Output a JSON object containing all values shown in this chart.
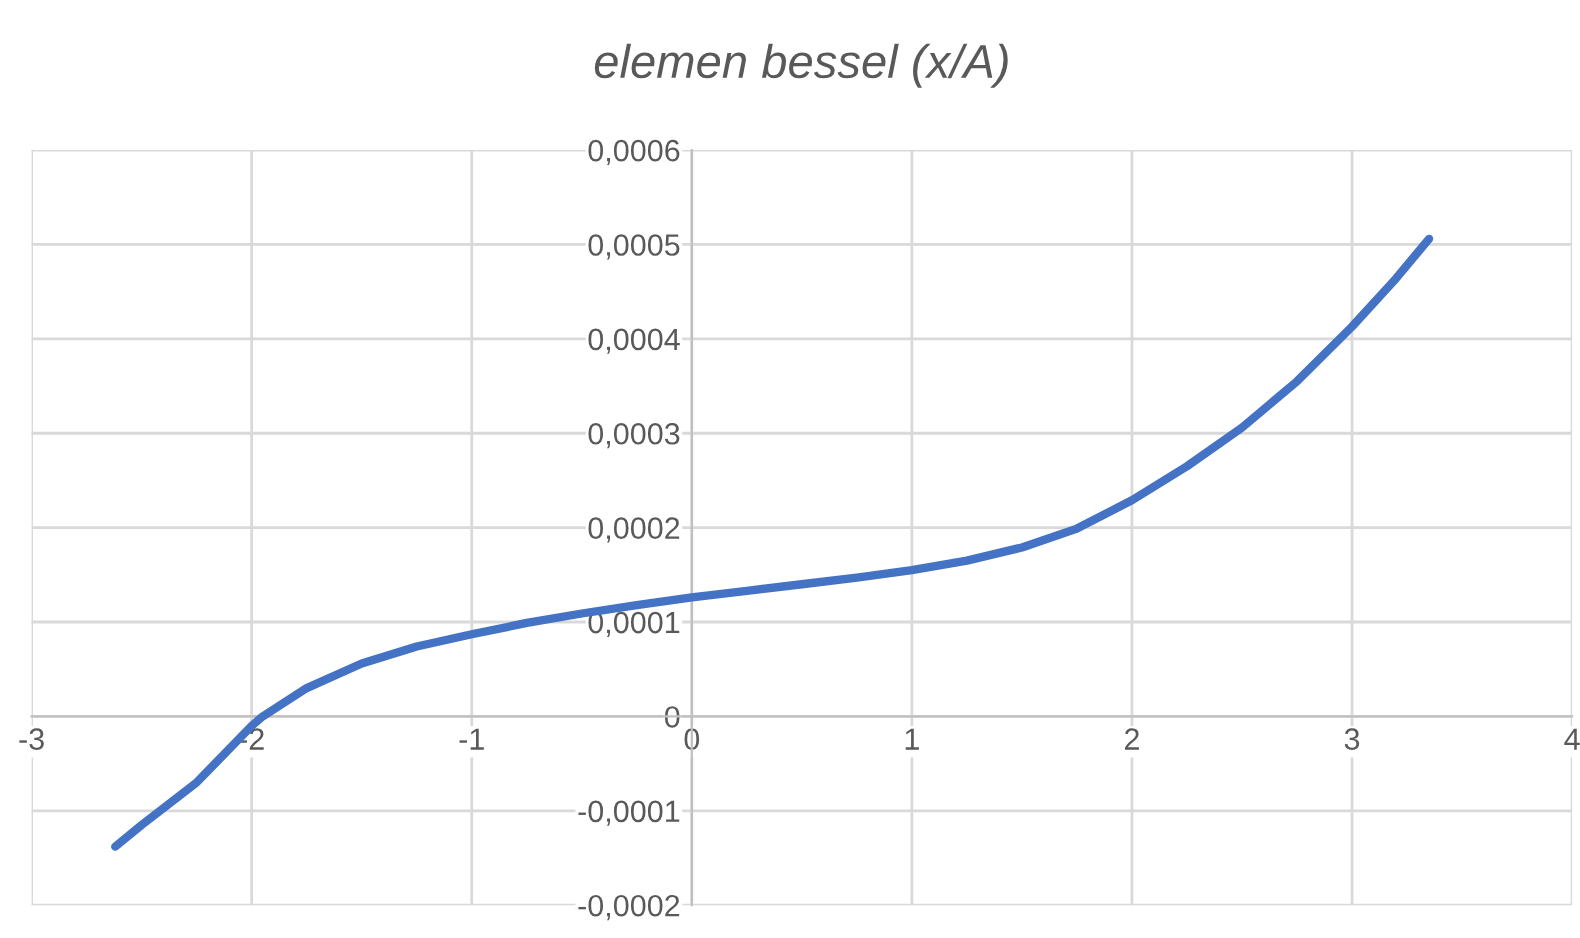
{
  "chart_data": {
    "type": "line",
    "title": "elemen bessel (x/A)",
    "x": [
      -2.62,
      -2.5,
      -2.25,
      -2.0,
      -1.95,
      -1.75,
      -1.5,
      -1.25,
      -1.0,
      -0.75,
      -0.5,
      -0.25,
      0.0,
      0.25,
      0.5,
      0.75,
      1.0,
      1.25,
      1.5,
      1.75,
      2.0,
      2.25,
      2.5,
      2.75,
      3.0,
      3.2,
      3.35
    ],
    "series": [
      {
        "color": "#4472c4",
        "values": [
          -0.000138,
          -0.000115,
          -7e-05,
          -1e-05,
          0.0,
          3e-05,
          5.6e-05,
          7.4e-05,
          8.7e-05,
          9.9e-05,
          0.000109,
          0.000118,
          0.000126,
          0.000133,
          0.00014,
          0.000147,
          0.000155,
          0.000165,
          0.000179,
          0.000199,
          0.000229,
          0.000265,
          0.000306,
          0.000355,
          0.000413,
          0.000464,
          0.000506
        ]
      }
    ],
    "xlim": [
      -3,
      4
    ],
    "xticks": [
      -3,
      -2,
      -1,
      0,
      1,
      2,
      3,
      4
    ],
    "ylim": [
      -0.0002,
      0.0006
    ],
    "yticks": [
      {
        "value": -0.0002,
        "label": "-0,0002"
      },
      {
        "value": -0.0001,
        "label": "-0,0001"
      },
      {
        "value": 0,
        "label": "0"
      },
      {
        "value": 0.0001,
        "label": "0,0001"
      },
      {
        "value": 0.0002,
        "label": "0,0002"
      },
      {
        "value": 0.0003,
        "label": "0,0003"
      },
      {
        "value": 0.0004,
        "label": "0,0004"
      },
      {
        "value": 0.0005,
        "label": "0,0005"
      },
      {
        "value": 0.0006,
        "label": "0,0006"
      }
    ],
    "grid": true,
    "marker": "none",
    "line_style": "solid"
  }
}
